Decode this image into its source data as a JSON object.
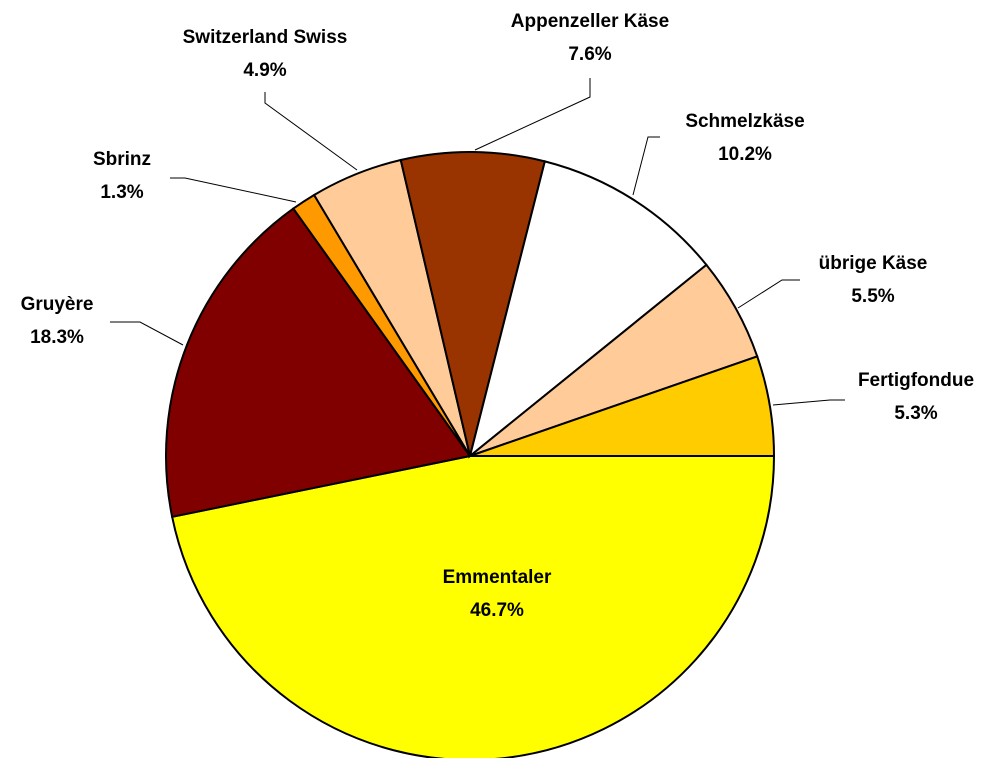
{
  "chart_data": {
    "type": "pie",
    "categories": [
      "Emmentaler",
      "Gruyère",
      "Sbrinz",
      "Switzerland Swiss",
      "Appenzeller Käse",
      "Schmelzkäse",
      "übrige Käse",
      "Fertigfondue"
    ],
    "values": [
      46.7,
      18.3,
      1.3,
      4.9,
      7.6,
      10.2,
      5.5,
      5.3
    ],
    "value_labels": [
      "46.7%",
      "18.3%",
      "1.3%",
      "4.9%",
      "7.6%",
      "10.2%",
      "5.5%",
      "5.3%"
    ],
    "colors": [
      "#ffff00",
      "#800000",
      "#ff9900",
      "#ffcc99",
      "#993300",
      "#ffffff",
      "#ffcc99",
      "#ffcc00"
    ]
  }
}
